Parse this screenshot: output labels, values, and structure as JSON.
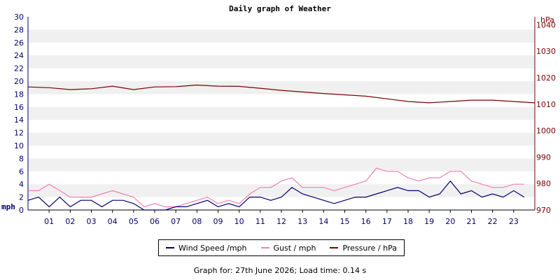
{
  "title": "Daily graph of Weather",
  "footer": "Graph for: 27th June 2026; Load time: 0.14 s",
  "colors": {
    "wind": "#00006e",
    "gust": "#f080b0",
    "pressure": "#7a0000",
    "left_axis": "#00006e",
    "right_axis": "#7a0000"
  },
  "chart_data": {
    "type": "line",
    "title": "Daily graph of Weather",
    "x_ticks": [
      "01",
      "02",
      "03",
      "04",
      "05",
      "06",
      "07",
      "08",
      "09",
      "10",
      "11",
      "12",
      "13",
      "14",
      "15",
      "16",
      "17",
      "18",
      "19",
      "20",
      "21",
      "22",
      "23"
    ],
    "xlim": [
      0,
      24
    ],
    "left_axis": {
      "label": "mph",
      "ylim": [
        0,
        30
      ],
      "ticks": [
        "0",
        "2",
        "4",
        "6",
        "8",
        "10",
        "12",
        "14",
        "16",
        "18",
        "20",
        "22",
        "24",
        "26",
        "28",
        "30"
      ]
    },
    "right_axis": {
      "label": "hPa",
      "ylim": [
        970,
        1043
      ],
      "ticks": [
        "970",
        "980",
        "990",
        "1000",
        "1010",
        "1020",
        "1030",
        "1040"
      ]
    },
    "grid": "alternating horizontal bands",
    "legend_placement": "bottom-center",
    "series": [
      {
        "name": "Wind Speed /mph",
        "axis": "left",
        "color": "#00006e",
        "x": [
          0,
          0.5,
          1,
          1.5,
          2,
          2.5,
          3,
          3.5,
          4,
          4.5,
          5,
          5.5,
          6,
          6.5,
          7,
          7.5,
          8,
          8.5,
          9,
          9.5,
          10,
          10.5,
          11,
          11.5,
          12,
          12.5,
          13,
          13.5,
          14,
          14.5,
          15,
          15.5,
          16,
          16.5,
          17,
          17.5,
          18,
          18.5,
          19,
          19.5,
          20,
          20.5,
          21,
          21.5,
          22,
          22.5,
          23,
          23.5
        ],
        "values": [
          1.5,
          2,
          0.5,
          2,
          0.5,
          1.5,
          1.5,
          0.5,
          1.5,
          1.5,
          1,
          0,
          0,
          0,
          0.5,
          0.5,
          1,
          1.5,
          0.5,
          1,
          0.5,
          2,
          2,
          1.5,
          2,
          3.5,
          2.5,
          2,
          1.5,
          1,
          1.5,
          2,
          2,
          2.5,
          3,
          3.5,
          3,
          3,
          2,
          2.5,
          4.5,
          2.5,
          3,
          2,
          2.5,
          2,
          3,
          2
        ]
      },
      {
        "name": "Gust / mph",
        "axis": "left",
        "color": "#f080b0",
        "x": [
          0,
          0.5,
          1,
          1.5,
          2,
          2.5,
          3,
          3.5,
          4,
          4.5,
          5,
          5.5,
          6,
          6.5,
          7,
          7.5,
          8,
          8.5,
          9,
          9.5,
          10,
          10.5,
          11,
          11.5,
          12,
          12.5,
          13,
          13.5,
          14,
          14.5,
          15,
          15.5,
          16,
          16.5,
          17,
          17.5,
          18,
          18.5,
          19,
          19.5,
          20,
          20.5,
          21,
          21.5,
          22,
          22.5,
          23,
          23.5
        ],
        "values": [
          3,
          3,
          4,
          3,
          2,
          2,
          2,
          2.5,
          3,
          2.5,
          2,
          0.5,
          1,
          0.5,
          0.5,
          1,
          1.5,
          2,
          1,
          1.5,
          1,
          2.5,
          3.5,
          3.5,
          4.5,
          5,
          3.5,
          3.5,
          3.5,
          3,
          3.5,
          4,
          4.5,
          6.5,
          6,
          6,
          5,
          4.5,
          5,
          5,
          6,
          6,
          4.5,
          4,
          3.5,
          3.5,
          4,
          4
        ]
      },
      {
        "name": "Pressure / hPa",
        "axis": "right",
        "color": "#7a0000",
        "x": [
          0,
          1,
          2,
          3,
          4,
          5,
          6,
          7,
          8,
          9,
          10,
          11,
          12,
          13,
          14,
          15,
          16,
          17,
          18,
          19,
          20,
          21,
          22,
          23,
          24
        ],
        "values": [
          1016.5,
          1016.2,
          1015.5,
          1015.8,
          1016.8,
          1015.5,
          1016.5,
          1016.6,
          1017.2,
          1016.8,
          1016.7,
          1016,
          1015.2,
          1014.6,
          1014,
          1013.5,
          1013,
          1012,
          1011,
          1010.5,
          1011,
          1011.5,
          1011.5,
          1011,
          1010.5
        ]
      }
    ]
  }
}
